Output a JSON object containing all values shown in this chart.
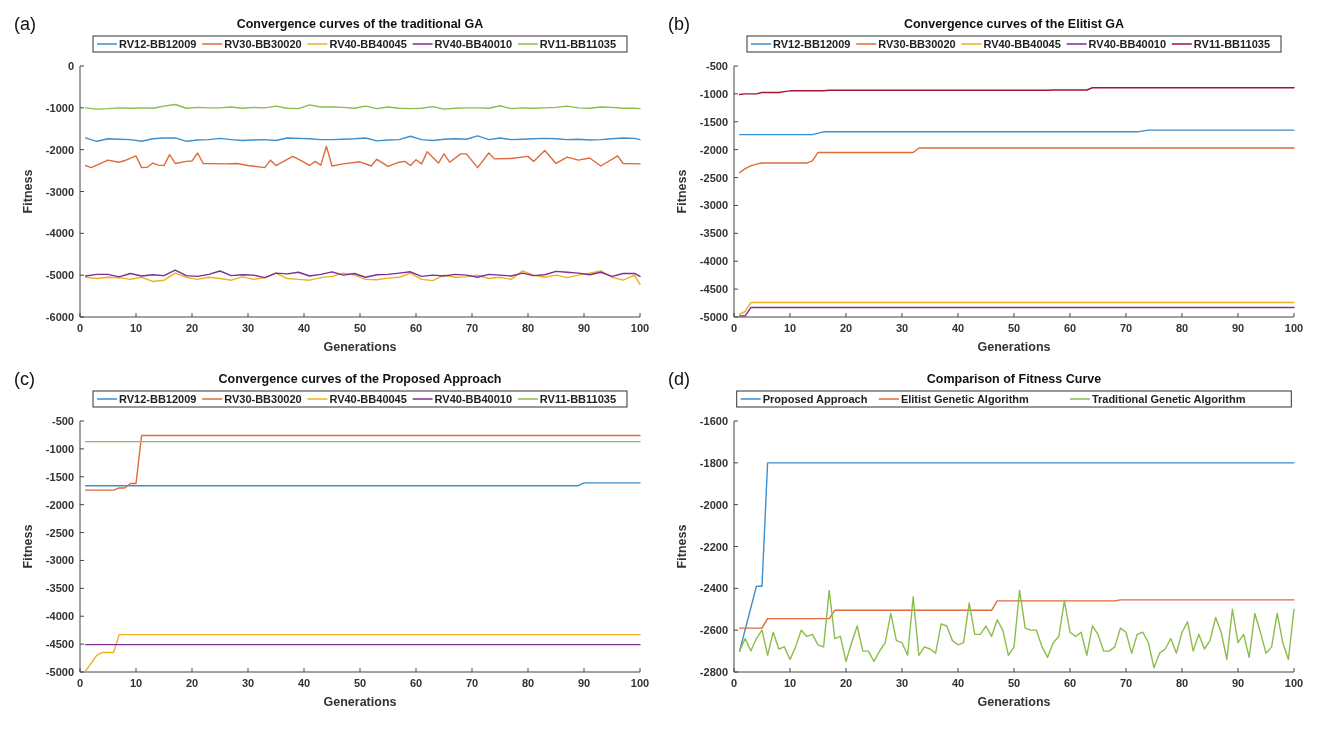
{
  "chart_data": [
    {
      "type": "line",
      "title": "Convergence curves of the traditional GA",
      "xlabel": "Generations",
      "ylabel": "Fitness",
      "annotations": [
        "(a)"
      ],
      "legend": "top",
      "grid": false,
      "xlim": [
        0,
        100
      ],
      "xticks": [
        0,
        10,
        20,
        30,
        40,
        50,
        60,
        70,
        80,
        90,
        100
      ],
      "ylim": [
        -6000,
        0
      ],
      "yticks": [
        -6000,
        -5000,
        -4000,
        -3000,
        -2000,
        -1000,
        0
      ],
      "x": [
        1,
        3,
        5,
        7,
        9,
        11,
        13,
        15,
        17,
        19,
        21,
        23,
        25,
        27,
        29,
        31,
        33,
        35,
        37,
        39,
        41,
        43,
        45,
        47,
        49,
        51,
        53,
        55,
        57,
        59,
        61,
        63,
        65,
        67,
        69,
        71,
        73,
        75,
        77,
        79,
        81,
        83,
        85,
        87,
        89,
        91,
        93,
        95,
        97,
        99,
        100
      ],
      "series": [
        {
          "name": "RV12-BB12009",
          "color": "#3a8fd0",
          "values": [
            -1720,
            -1800,
            -1740,
            -1750,
            -1760,
            -1800,
            -1740,
            -1720,
            -1720,
            -1800,
            -1770,
            -1760,
            -1730,
            -1760,
            -1780,
            -1770,
            -1760,
            -1780,
            -1720,
            -1730,
            -1740,
            -1760,
            -1760,
            -1750,
            -1740,
            -1720,
            -1790,
            -1770,
            -1760,
            -1680,
            -1760,
            -1780,
            -1750,
            -1740,
            -1750,
            -1670,
            -1760,
            -1720,
            -1760,
            -1750,
            -1740,
            -1730,
            -1740,
            -1760,
            -1750,
            -1770,
            -1760,
            -1740,
            -1720,
            -1730,
            -1760
          ]
        },
        {
          "name": "RV30-BB30020",
          "color": "#e06a3a",
          "x": [
            1,
            2,
            5,
            7,
            8,
            10,
            11,
            12,
            13,
            14,
            15,
            16,
            17,
            19,
            20,
            21,
            22,
            26,
            28,
            30,
            33,
            34,
            35,
            37,
            38,
            40,
            41,
            42,
            43,
            44,
            45,
            47,
            50,
            52,
            53,
            55,
            57,
            58,
            59,
            60,
            61,
            62,
            64,
            65,
            66,
            68,
            69,
            71,
            73,
            74,
            77,
            80,
            81,
            83,
            85,
            87,
            89,
            91,
            93,
            96,
            97,
            100
          ],
          "values": [
            -2380,
            -2430,
            -2250,
            -2300,
            -2260,
            -2150,
            -2430,
            -2420,
            -2320,
            -2370,
            -2380,
            -2120,
            -2330,
            -2280,
            -2270,
            -2080,
            -2330,
            -2340,
            -2330,
            -2380,
            -2430,
            -2250,
            -2380,
            -2230,
            -2160,
            -2300,
            -2380,
            -2280,
            -2370,
            -1920,
            -2390,
            -2340,
            -2290,
            -2390,
            -2230,
            -2400,
            -2300,
            -2280,
            -2380,
            -2240,
            -2340,
            -2050,
            -2320,
            -2100,
            -2300,
            -2100,
            -2100,
            -2430,
            -2080,
            -2220,
            -2210,
            -2160,
            -2280,
            -2020,
            -2330,
            -2180,
            -2250,
            -2200,
            -2390,
            -2150,
            -2330,
            -2340
          ]
        },
        {
          "name": "RV40-BB40045",
          "color": "#edb120",
          "values": [
            -5050,
            -5080,
            -5050,
            -5060,
            -5100,
            -5050,
            -5150,
            -5120,
            -4950,
            -5050,
            -5100,
            -5050,
            -5080,
            -5120,
            -5040,
            -5100,
            -5060,
            -4950,
            -5080,
            -5100,
            -5120,
            -5060,
            -5030,
            -4950,
            -5000,
            -5100,
            -5110,
            -5070,
            -5050,
            -4950,
            -5100,
            -5130,
            -5000,
            -5050,
            -5040,
            -5000,
            -5080,
            -5050,
            -5100,
            -4900,
            -5000,
            -5050,
            -5000,
            -5060,
            -5000,
            -4950,
            -4900,
            -5050,
            -5120,
            -5000,
            -5220
          ]
        },
        {
          "name": "RV40-BB40010",
          "color": "#7e2f8e",
          "values": [
            -5020,
            -4980,
            -4980,
            -5040,
            -4960,
            -5020,
            -4990,
            -5010,
            -4880,
            -5010,
            -5030,
            -4980,
            -4900,
            -5010,
            -4990,
            -5000,
            -5060,
            -4950,
            -4970,
            -4930,
            -5020,
            -4980,
            -4920,
            -5000,
            -4960,
            -5050,
            -4990,
            -4980,
            -4950,
            -4920,
            -5030,
            -5000,
            -5020,
            -4980,
            -5000,
            -5050,
            -4980,
            -5000,
            -5020,
            -4950,
            -5010,
            -4990,
            -4910,
            -4930,
            -4950,
            -4990,
            -4930,
            -5030,
            -4960,
            -4960,
            -5030
          ]
        },
        {
          "name": "RV11-BB11035",
          "color": "#8bbd4a",
          "values": [
            -1000,
            -1030,
            -1020,
            -1000,
            -1010,
            -1000,
            -1010,
            -960,
            -920,
            -1010,
            -990,
            -1000,
            -1000,
            -980,
            -1010,
            -990,
            -1000,
            -960,
            -1010,
            -1020,
            -930,
            -980,
            -980,
            -990,
            -1010,
            -960,
            -1020,
            -980,
            -1010,
            -1020,
            -1010,
            -970,
            -1030,
            -1010,
            -1000,
            -1000,
            -1010,
            -950,
            -1020,
            -1000,
            -1010,
            -1000,
            -990,
            -960,
            -1000,
            -1010,
            -980,
            -990,
            -1010,
            -1010,
            -1020
          ]
        }
      ]
    },
    {
      "type": "line",
      "title": "Convergence curves of the Elitist GA",
      "xlabel": "Generations",
      "ylabel": "Fitness",
      "annotations": [
        "(b)"
      ],
      "legend": "top",
      "grid": false,
      "xlim": [
        0,
        100
      ],
      "xticks": [
        0,
        10,
        20,
        30,
        40,
        50,
        60,
        70,
        80,
        90,
        100
      ],
      "ylim": [
        -5000,
        -500
      ],
      "yticks": [
        -5000,
        -4500,
        -4000,
        -3500,
        -3000,
        -2500,
        -2000,
        -1500,
        -1000,
        -500
      ],
      "series": [
        {
          "name": "RV12-BB12009",
          "color": "#3a8fd0",
          "x": [
            1,
            14,
            16,
            72,
            74,
            100
          ],
          "values": [
            -1730,
            -1730,
            -1680,
            -1680,
            -1650,
            -1650
          ]
        },
        {
          "name": "RV30-BB30020",
          "color": "#e06a3a",
          "x": [
            1,
            2,
            3,
            4,
            5,
            13,
            14,
            15,
            32,
            33,
            100
          ],
          "values": [
            -2410,
            -2340,
            -2290,
            -2260,
            -2240,
            -2240,
            -2200,
            -2050,
            -2050,
            -1970,
            -1970
          ]
        },
        {
          "name": "RV40-BB40045",
          "color": "#edb120",
          "x": [
            1,
            2,
            3,
            100
          ],
          "values": [
            -4950,
            -4900,
            -4740,
            -4740
          ]
        },
        {
          "name": "RV40-BB40010",
          "color": "#7e2f8e",
          "x": [
            1,
            2,
            3,
            100
          ],
          "values": [
            -4980,
            -4980,
            -4830,
            -4830
          ]
        },
        {
          "name": "RV11-BB11035",
          "color": "#a2142f",
          "x": [
            1,
            2,
            4,
            5,
            8,
            9,
            10,
            16,
            17,
            56,
            57,
            63,
            64,
            100
          ],
          "values": [
            -1010,
            -1000,
            -1000,
            -975,
            -975,
            -960,
            -945,
            -945,
            -935,
            -935,
            -930,
            -930,
            -890,
            -890
          ]
        }
      ]
    },
    {
      "type": "line",
      "title": "Convergence curves of the Proposed Approach",
      "xlabel": "Generations",
      "ylabel": "Fitness",
      "annotations": [
        "(c)"
      ],
      "legend": "top",
      "grid": false,
      "xlim": [
        0,
        100
      ],
      "xticks": [
        0,
        10,
        20,
        30,
        40,
        50,
        60,
        70,
        80,
        90,
        100
      ],
      "ylim": [
        -5000,
        -500
      ],
      "yticks": [
        -5000,
        -4500,
        -4000,
        -3500,
        -3000,
        -2500,
        -2000,
        -1500,
        -1000,
        -500
      ],
      "series": [
        {
          "name": "RV12-BB12009",
          "color": "#3a8fd0",
          "x": [
            1,
            89,
            90,
            100
          ],
          "values": [
            -1660,
            -1660,
            -1610,
            -1610
          ]
        },
        {
          "name": "RV30-BB30020",
          "color": "#e06a3a",
          "x": [
            1,
            6,
            7,
            8,
            9,
            10,
            11,
            100
          ],
          "values": [
            -1740,
            -1740,
            -1700,
            -1700,
            -1620,
            -1620,
            -760,
            -760
          ]
        },
        {
          "name": "RV40-BB40045",
          "color": "#edb120",
          "x": [
            1,
            3,
            4,
            6,
            7,
            100
          ],
          "values": [
            -4980,
            -4700,
            -4650,
            -4650,
            -4330,
            -4330
          ]
        },
        {
          "name": "RV40-BB40010",
          "color": "#7e2f8e",
          "x": [
            1,
            100
          ],
          "values": [
            -4510,
            -4510
          ]
        },
        {
          "name": "RV11-BB11035",
          "color": "#8bbd4a",
          "x": [
            1,
            100
          ],
          "values": [
            -870,
            -870
          ]
        }
      ]
    },
    {
      "type": "line",
      "title": "Comparison of Fitness Curve",
      "xlabel": "Generations",
      "ylabel": "Fitness",
      "annotations": [
        "(d)"
      ],
      "legend": "top",
      "grid": false,
      "xlim": [
        0,
        100
      ],
      "xticks": [
        0,
        10,
        20,
        30,
        40,
        50,
        60,
        70,
        80,
        90,
        100
      ],
      "ylim": [
        -2800,
        -1600
      ],
      "yticks": [
        -2800,
        -2600,
        -2400,
        -2200,
        -2000,
        -1800,
        -1600
      ],
      "series": [
        {
          "name": "Proposed Approach",
          "color": "#3a8fd0",
          "x": [
            1,
            4,
            5,
            6,
            100
          ],
          "values": [
            -2700,
            -2390,
            -2390,
            -1800,
            -1800
          ]
        },
        {
          "name": "Elitist Genetic Algorithm",
          "color": "#e06a3a",
          "x": [
            1,
            5,
            6,
            17,
            18,
            46,
            47,
            68,
            69,
            100
          ],
          "values": [
            -2590,
            -2590,
            -2545,
            -2545,
            -2505,
            -2505,
            -2460,
            -2460,
            -2455,
            -2455
          ]
        },
        {
          "name": "Traditional Genetic Algorithm",
          "color": "#8bbd4a",
          "x": [
            1,
            2,
            3,
            4,
            5,
            6,
            7,
            8,
            9,
            10,
            11,
            12,
            13,
            14,
            15,
            16,
            17,
            18,
            19,
            20,
            21,
            22,
            23,
            24,
            25,
            26,
            27,
            28,
            29,
            30,
            31,
            32,
            33,
            34,
            35,
            36,
            37,
            38,
            39,
            40,
            41,
            42,
            43,
            44,
            45,
            46,
            47,
            48,
            49,
            50,
            51,
            52,
            53,
            54,
            55,
            56,
            57,
            58,
            59,
            60,
            61,
            62,
            63,
            64,
            65,
            66,
            67,
            68,
            69,
            70,
            71,
            72,
            73,
            74,
            75,
            76,
            77,
            78,
            79,
            80,
            81,
            82,
            83,
            84,
            85,
            86,
            87,
            88,
            89,
            90,
            91,
            92,
            93,
            94,
            95,
            96,
            97,
            98,
            99,
            100
          ],
          "values": [
            -2700,
            -2640,
            -2700,
            -2640,
            -2600,
            -2720,
            -2610,
            -2690,
            -2680,
            -2740,
            -2680,
            -2600,
            -2630,
            -2620,
            -2670,
            -2680,
            -2410,
            -2640,
            -2630,
            -2750,
            -2660,
            -2580,
            -2700,
            -2700,
            -2750,
            -2700,
            -2660,
            -2520,
            -2650,
            -2660,
            -2720,
            -2440,
            -2720,
            -2680,
            -2690,
            -2710,
            -2570,
            -2580,
            -2650,
            -2670,
            -2660,
            -2470,
            -2620,
            -2620,
            -2580,
            -2630,
            -2550,
            -2600,
            -2720,
            -2680,
            -2410,
            -2590,
            -2600,
            -2600,
            -2680,
            -2730,
            -2660,
            -2630,
            -2460,
            -2610,
            -2630,
            -2610,
            -2720,
            -2580,
            -2620,
            -2700,
            -2700,
            -2680,
            -2590,
            -2610,
            -2710,
            -2620,
            -2610,
            -2660,
            -2780,
            -2710,
            -2690,
            -2640,
            -2710,
            -2610,
            -2560,
            -2700,
            -2620,
            -2690,
            -2650,
            -2540,
            -2610,
            -2740,
            -2500,
            -2660,
            -2620,
            -2730,
            -2520,
            -2610,
            -2710,
            -2680,
            -2520,
            -2660,
            -2740,
            -2500
          ]
        }
      ]
    }
  ]
}
